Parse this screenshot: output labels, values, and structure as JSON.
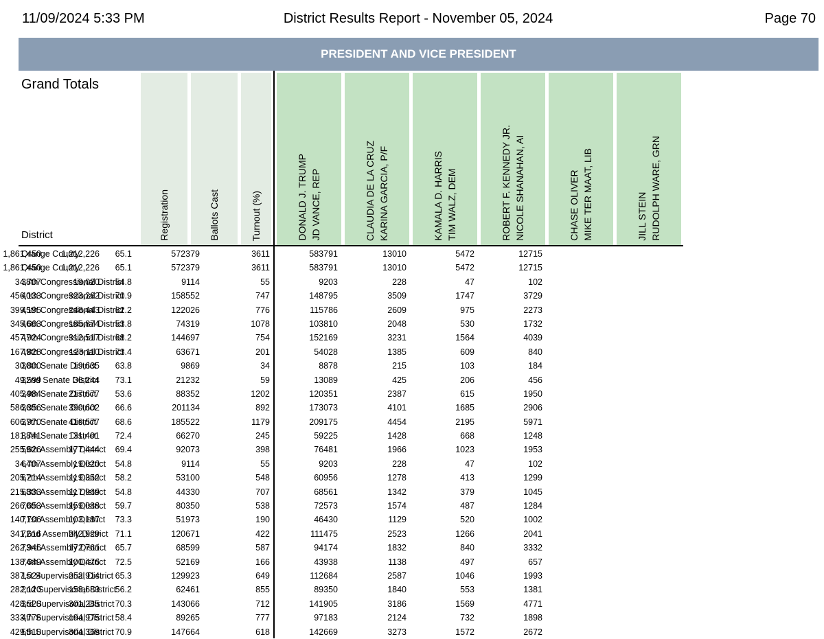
{
  "header": {
    "datetime": "11/09/2024 5:33 PM",
    "title": "District Results Report - November 05, 2024",
    "page": "Page 70"
  },
  "contest": "PRESIDENT AND VICE PRESIDENT",
  "grand_totals_label": "Grand Totals",
  "district_label": "District",
  "stat_headers": [
    "Registration",
    "Ballots Cast",
    "Turnout (%)"
  ],
  "candidates": [
    {
      "line1": "DONALD J. TRUMP",
      "line2": "JD VANCE, REP"
    },
    {
      "line1": "CLAUDIA DE LA CRUZ",
      "line2": "KARINA GARCIA, P/F"
    },
    {
      "line1": "KAMALA D. HARRIS",
      "line2": "TIM WALZ, DEM"
    },
    {
      "line1": "ROBERT F. KENNEDY JR.",
      "line2": "NICOLE SHANAHAN, AI"
    },
    {
      "line1": "CHASE OLIVER",
      "line2": "MIKE TER MAAT, LIB"
    },
    {
      "line1": "JILL STEIN",
      "line2": "RUDOLPH WARE, GRN"
    }
  ],
  "colors": {
    "banner": "#8a9db3",
    "stat_header_bg": "#e3ece3",
    "candidate_header_bg": "#c3e2c3"
  },
  "rows": [
    [
      "Orange County",
      "1,861,450",
      "1,212,226",
      "65.1",
      "572379",
      "3611",
      "583791",
      "13010",
      "5472",
      "12715"
    ],
    [
      "Orange County",
      "1,861,450",
      "1,212,226",
      "65.1",
      "572379",
      "3611",
      "583791",
      "13010",
      "5472",
      "12715"
    ],
    [
      "38th Congressional District",
      "34,707",
      "19,020",
      "54.8",
      "9114",
      "55",
      "9203",
      "228",
      "47",
      "102"
    ],
    [
      "40th Congressional District",
      "456,133",
      "323,262",
      "70.9",
      "158552",
      "747",
      "148795",
      "3509",
      "1747",
      "3729"
    ],
    [
      "45th Congressional District",
      "399,195",
      "248,443",
      "62.2",
      "122026",
      "776",
      "115786",
      "2609",
      "975",
      "2273"
    ],
    [
      "46th Congressional District",
      "345,663",
      "185,874",
      "53.8",
      "74319",
      "1078",
      "103810",
      "2048",
      "530",
      "1732"
    ],
    [
      "47th Congressional District",
      "457,924",
      "312,517",
      "68.2",
      "144697",
      "754",
      "152169",
      "3231",
      "1564",
      "4039"
    ],
    [
      "49th Congressional District",
      "167,828",
      "123,110",
      "73.4",
      "63671",
      "201",
      "54028",
      "1385",
      "609",
      "840"
    ],
    [
      "30th Senate District",
      "30,800",
      "19,635",
      "63.8",
      "9869",
      "34",
      "8878",
      "215",
      "103",
      "184"
    ],
    [
      "32nd Senate District",
      "49,599",
      "36,244",
      "73.1",
      "21232",
      "59",
      "13089",
      "425",
      "206",
      "456"
    ],
    [
      "34th Senate District",
      "405,984",
      "217,677",
      "53.6",
      "88352",
      "1202",
      "120351",
      "2387",
      "615",
      "1950"
    ],
    [
      "36th Senate District",
      "586,356",
      "390,602",
      "66.6",
      "201134",
      "892",
      "173073",
      "4101",
      "1685",
      "2906"
    ],
    [
      "37th Senate District",
      "606,970",
      "416,577",
      "68.6",
      "185522",
      "1179",
      "209175",
      "4454",
      "2195",
      "5971"
    ],
    [
      "38th Senate District",
      "181,741",
      "131,491",
      "72.4",
      "66270",
      "245",
      "59225",
      "1428",
      "668",
      "1248"
    ],
    [
      "59th Assembly District",
      "255,626",
      "177,444",
      "69.4",
      "92073",
      "398",
      "76481",
      "1966",
      "1023",
      "1953"
    ],
    [
      "64th Assembly District",
      "34,707",
      "19,020",
      "54.8",
      "9114",
      "55",
      "9203",
      "228",
      "47",
      "102"
    ],
    [
      "67th Assembly District",
      "205,214",
      "119,352",
      "58.2",
      "53100",
      "548",
      "60956",
      "1278",
      "413",
      "1299"
    ],
    [
      "68th Assembly District",
      "215,333",
      "117,969",
      "54.8",
      "44330",
      "707",
      "68561",
      "1342",
      "379",
      "1045"
    ],
    [
      "70th Assembly District",
      "266,653",
      "159,088",
      "59.7",
      "80350",
      "538",
      "72573",
      "1574",
      "487",
      "1284"
    ],
    [
      "71st Assembly District",
      "140,706",
      "103,187",
      "73.3",
      "51973",
      "190",
      "46430",
      "1129",
      "520",
      "1002"
    ],
    [
      "72nd Assembly District",
      "341,616",
      "242,929",
      "71.1",
      "120671",
      "422",
      "111475",
      "2523",
      "1266",
      "2041"
    ],
    [
      "73rd Assembly District",
      "262,946",
      "172,761",
      "65.7",
      "68599",
      "587",
      "94174",
      "1832",
      "840",
      "3332"
    ],
    [
      "74th Assembly District",
      "138,649",
      "100,476",
      "72.5",
      "52169",
      "166",
      "43938",
      "1138",
      "497",
      "657"
    ],
    [
      "1st Supervisorial District",
      "387,524",
      "252,914",
      "65.3",
      "129923",
      "649",
      "112684",
      "2587",
      "1046",
      "1993"
    ],
    [
      "2nd Supervisorial District",
      "282,120",
      "158,683",
      "56.2",
      "62461",
      "855",
      "89350",
      "1840",
      "553",
      "1381"
    ],
    [
      "3rd Supervisorial District",
      "428,520",
      "301,285",
      "70.3",
      "143066",
      "712",
      "141905",
      "3186",
      "1569",
      "4771"
    ],
    [
      "4th Supervisorial District",
      "333,776",
      "194,975",
      "58.4",
      "89265",
      "777",
      "97183",
      "2124",
      "732",
      "1898"
    ],
    [
      "5th Supervisorial District",
      "429,510",
      "304,369",
      "70.9",
      "147664",
      "618",
      "142669",
      "3273",
      "1572",
      "2672"
    ]
  ]
}
